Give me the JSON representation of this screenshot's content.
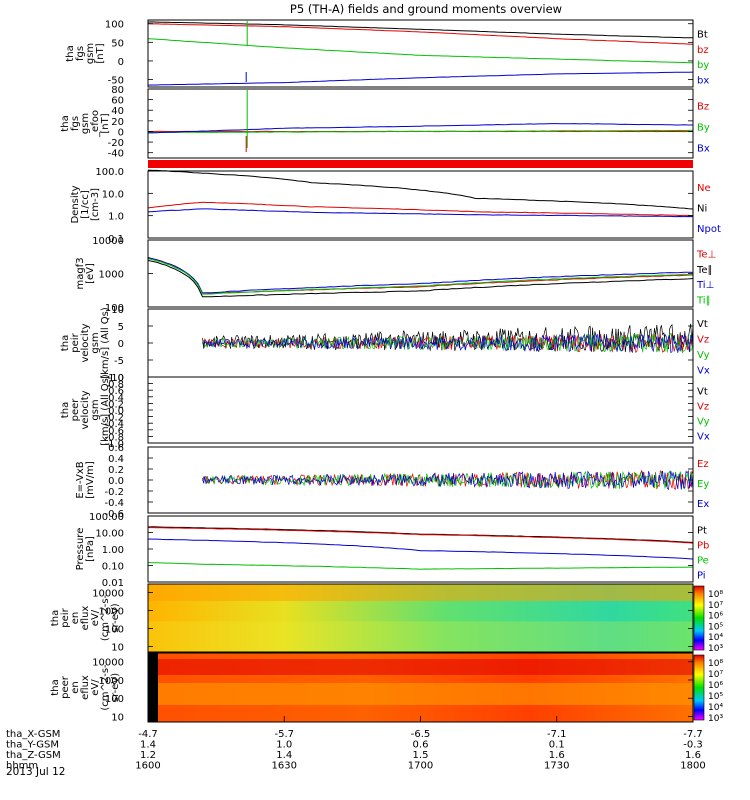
{
  "title": "P5 (TH-A) fields and ground moments overview",
  "chart_data": [
    {
      "type": "line",
      "ylabel": [
        "tha",
        "fgs",
        "gsm",
        "[nT]"
      ],
      "ylim": [
        -70,
        110
      ],
      "yscale": "linear",
      "ticks": [
        "100",
        "50",
        "0",
        "-50"
      ],
      "tick_values": [
        100,
        50,
        0,
        -50
      ],
      "series": [
        {
          "name": "Bt",
          "color": "#000000",
          "x": [
            0,
            0.25,
            0.5,
            0.75,
            1
          ],
          "values": [
            105,
            97,
            85,
            72,
            62
          ]
        },
        {
          "name": "bz",
          "color": "#e00000",
          "x": [
            0,
            0.25,
            0.5,
            0.75,
            1
          ],
          "values": [
            100,
            92,
            78,
            60,
            45
          ]
        },
        {
          "name": "by",
          "color": "#00c000",
          "x": [
            0,
            0.25,
            0.5,
            0.75,
            1
          ],
          "values": [
            60,
            35,
            15,
            5,
            -5
          ]
        },
        {
          "name": "bx",
          "color": "#0000d0",
          "x": [
            0,
            0.25,
            0.5,
            0.75,
            1
          ],
          "values": [
            -65,
            -58,
            -45,
            -35,
            -30
          ]
        }
      ]
    },
    {
      "type": "line",
      "ylabel": [
        "tha",
        "fgs",
        "gsm",
        "_efoo",
        "[nT]"
      ],
      "ylim": [
        -50,
        80
      ],
      "yscale": "linear",
      "ticks": [
        "80",
        "60",
        "40",
        "20",
        "0",
        "-20",
        "-40"
      ],
      "tick_values": [
        80,
        60,
        40,
        20,
        0,
        -20,
        -40
      ],
      "series": [
        {
          "name": "Bz",
          "color": "#e00000",
          "x": [
            0,
            0.5,
            1
          ],
          "values": [
            0,
            0,
            0
          ]
        },
        {
          "name": "By",
          "color": "#00c000",
          "x": [
            0,
            0.5,
            1
          ],
          "values": [
            -2,
            0,
            2
          ]
        },
        {
          "name": "Bx",
          "color": "#0000d0",
          "x": [
            0,
            0.25,
            0.5,
            0.75,
            1
          ],
          "values": [
            -3,
            6,
            10,
            15,
            12
          ]
        }
      ]
    },
    {
      "type": "line",
      "ylabel": [
        "Density",
        "[1/cc]",
        "[cm-3]"
      ],
      "ylim": [
        0.1,
        100
      ],
      "yscale": "log",
      "ticks": [
        "100.0",
        "10.0",
        "1.0",
        "0.1"
      ],
      "tick_values": [
        100,
        10,
        1,
        0.1
      ],
      "series": [
        {
          "name": "Ne",
          "color": "#e00000",
          "x": [
            0,
            0.1,
            0.3,
            0.6,
            1
          ],
          "values": [
            2.2,
            4,
            2.5,
            1.5,
            1.0
          ]
        },
        {
          "name": "Ni",
          "color": "#000000",
          "x": [
            0,
            0.1,
            0.3,
            0.6,
            1
          ],
          "values": [
            110,
            80,
            30,
            6,
            2
          ]
        },
        {
          "name": "Npot",
          "color": "#0000d0",
          "x": [
            0,
            0.1,
            0.3,
            0.6,
            1
          ],
          "values": [
            1.5,
            2.0,
            1.4,
            1.1,
            0.9
          ]
        }
      ]
    },
    {
      "type": "line",
      "ylabel": [
        "magf3",
        "[eV]"
      ],
      "ylim": [
        100,
        10000
      ],
      "yscale": "log",
      "ticks": [
        "10000",
        "1000",
        "100"
      ],
      "tick_values": [
        10000,
        1000,
        100
      ],
      "series": [
        {
          "name": "Te⊥",
          "color": "#e00000",
          "x": [
            0,
            0.1,
            0.5,
            1
          ],
          "values": [
            3000,
            250,
            400,
            900
          ]
        },
        {
          "name": "Te∥",
          "color": "#000000",
          "x": [
            0,
            0.1,
            0.5,
            1
          ],
          "values": [
            2500,
            200,
            300,
            700
          ]
        },
        {
          "name": "Ti⊥",
          "color": "#0000d0",
          "x": [
            0,
            0.1,
            0.5,
            1
          ],
          "values": [
            3000,
            260,
            500,
            1100
          ]
        },
        {
          "name": "Ti∥",
          "color": "#00c000",
          "x": [
            0,
            0.1,
            0.5,
            1
          ],
          "values": [
            2800,
            240,
            420,
            950
          ]
        }
      ]
    },
    {
      "type": "line",
      "ylabel": [
        "tha",
        "peir",
        "velocity",
        "gsm",
        "[km/s] (All Qs)"
      ],
      "ylim": [
        -10,
        10
      ],
      "yscale": "linear",
      "ticks": [
        "10",
        "5",
        "0",
        "-5",
        "-10"
      ],
      "tick_values": [
        10,
        5,
        0,
        -5,
        -10
      ],
      "series": [
        {
          "name": "Vt",
          "color": "#000000",
          "x": [
            0.1,
            1
          ],
          "values": [
            0,
            0
          ]
        },
        {
          "name": "Vz",
          "color": "#e00000",
          "x": [
            0.1,
            1
          ],
          "values": [
            0,
            0
          ]
        },
        {
          "name": "Vy",
          "color": "#00c000",
          "x": [
            0.1,
            1
          ],
          "values": [
            0,
            0
          ]
        },
        {
          "name": "Vx",
          "color": "#0000d0",
          "x": [
            0.1,
            1
          ],
          "values": [
            0,
            0
          ]
        }
      ]
    },
    {
      "type": "line",
      "ylabel": [
        "tha",
        "peer",
        "velocity",
        "gsm",
        "[km/s] (All Qs)"
      ],
      "ylim": [
        -1.0,
        1.0
      ],
      "yscale": "linear",
      "ticks": [
        "1.0",
        "0.8",
        "0.6",
        "0.4",
        "0.2",
        "0.0",
        "-0.2",
        "-0.4",
        "-0.6",
        "-0.8",
        "-1.0"
      ],
      "tick_values": [
        1.0,
        0.8,
        0.6,
        0.4,
        0.2,
        0.0,
        -0.2,
        -0.4,
        -0.6,
        -0.8,
        -1.0
      ],
      "series": [
        {
          "name": "Vt",
          "color": "#000000",
          "x": [],
          "values": []
        },
        {
          "name": "Vz",
          "color": "#e00000",
          "x": [],
          "values": []
        },
        {
          "name": "Vy",
          "color": "#00c000",
          "x": [],
          "values": []
        },
        {
          "name": "Vx",
          "color": "#0000d0",
          "x": [],
          "values": []
        }
      ]
    },
    {
      "type": "line",
      "ylabel": [
        "E=-VxB",
        "[mV/m]"
      ],
      "ylim": [
        -0.6,
        0.6
      ],
      "yscale": "linear",
      "ticks": [
        "0.6",
        "0.4",
        "0.2",
        "0.0",
        "-0.2",
        "-0.4",
        "-0.6"
      ],
      "tick_values": [
        0.6,
        0.4,
        0.2,
        0.0,
        -0.2,
        -0.4,
        -0.6
      ],
      "series": [
        {
          "name": "Ez",
          "color": "#e00000",
          "x": [
            0.1,
            1
          ],
          "values": [
            0,
            0
          ]
        },
        {
          "name": "Ey",
          "color": "#00c000",
          "x": [
            0.1,
            1
          ],
          "values": [
            0,
            0
          ]
        },
        {
          "name": "Ex",
          "color": "#0000d0",
          "x": [
            0.1,
            1
          ],
          "values": [
            0,
            0
          ]
        }
      ]
    },
    {
      "type": "line",
      "ylabel": [
        "Pressure",
        "[nPa]"
      ],
      "ylim": [
        0.01,
        100
      ],
      "yscale": "log",
      "ticks": [
        "100.00",
        "10.00",
        "1.00",
        "0.10",
        "0.01"
      ],
      "tick_values": [
        100,
        10,
        1,
        0.1,
        0.01
      ],
      "series": [
        {
          "name": "Pt",
          "color": "#000000",
          "x": [
            0,
            0.5,
            1
          ],
          "values": [
            22,
            8,
            2.5
          ]
        },
        {
          "name": "Pb",
          "color": "#e00000",
          "x": [
            0,
            0.5,
            1
          ],
          "values": [
            20,
            7.5,
            2.3
          ]
        },
        {
          "name": "Pe",
          "color": "#00c000",
          "x": [
            0,
            0.1,
            0.5,
            1
          ],
          "values": [
            0.15,
            0.12,
            0.06,
            0.08
          ]
        },
        {
          "name": "Pi",
          "color": "#0000d0",
          "x": [
            0,
            0.5,
            1
          ],
          "values": [
            4,
            0.8,
            0.25
          ]
        }
      ]
    },
    {
      "type": "heatmap",
      "ylabel": [
        "tha",
        "peir",
        "en",
        "eflux",
        "eV/",
        "(cm^2-s-",
        "sr-eV)"
      ],
      "ylim": [
        5,
        30000
      ],
      "yscale": "log",
      "ticks": [
        "10000",
        "1000",
        "100",
        "10"
      ],
      "tick_values": [
        10000,
        1000,
        100,
        10
      ],
      "colorbar_ticks": [
        "10⁸",
        "10⁷",
        "10⁶",
        "10⁵",
        "10⁴",
        "10³"
      ]
    },
    {
      "type": "heatmap",
      "ylabel": [
        "tha",
        "peer",
        "en",
        "eflux",
        "eV/",
        "(cm^2-s-",
        "sr-eV)"
      ],
      "ylim": [
        5,
        30000
      ],
      "yscale": "log",
      "ticks": [
        "10000",
        "1000",
        "100",
        "10"
      ],
      "tick_values": [
        10000,
        1000,
        100,
        10
      ],
      "colorbar_ticks": [
        "10⁸",
        "10⁷",
        "10⁶",
        "10⁵",
        "10⁴",
        "10³"
      ]
    }
  ],
  "xaxis": {
    "rows": [
      {
        "label": "tha_X-GSM",
        "values": [
          "-4.7",
          "-5.7",
          "-6.5",
          "-7.1",
          "-7.7"
        ]
      },
      {
        "label": "tha_Y-GSM",
        "values": [
          "1.4",
          "1.0",
          "0.6",
          "0.1",
          "-0.3"
        ]
      },
      {
        "label": "tha_Z-GSM",
        "values": [
          "1.2",
          "1.4",
          "1.5",
          "1.6",
          "1.6"
        ]
      },
      {
        "label": "hhmm",
        "values": [
          "1600",
          "1630",
          "1700",
          "1730",
          "1800"
        ]
      }
    ],
    "date": "2013 Jul 12"
  }
}
